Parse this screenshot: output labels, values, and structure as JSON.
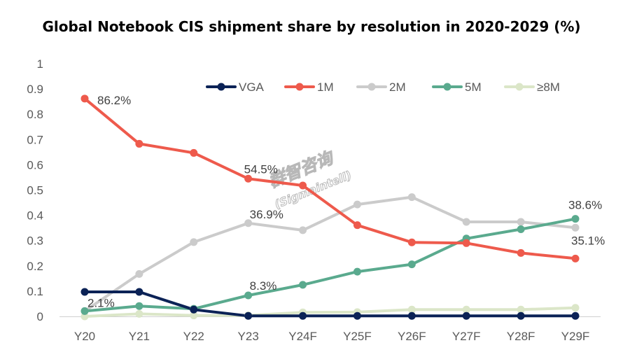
{
  "chart_data": {
    "type": "line",
    "title": "Global Notebook CIS shipment share by resolution in 2020-2029 (%)",
    "categories": [
      "Y20",
      "Y21",
      "Y22",
      "Y23",
      "Y24F",
      "Y25F",
      "Y26F",
      "Y27F",
      "Y28F",
      "Y29F"
    ],
    "ylim": [
      0,
      1
    ],
    "yticks": [
      "0",
      "0.1",
      "0.2",
      "0.3",
      "0.4",
      "0.5",
      "0.6",
      "0.7",
      "0.8",
      "0.9",
      "1"
    ],
    "grid": false,
    "legend_position": "top",
    "series": [
      {
        "name": "VGA",
        "color": "#0b2256",
        "values": [
          0.097,
          0.097,
          0.027,
          0.002,
          0.002,
          0.002,
          0.002,
          0.002,
          0.002,
          0.002
        ]
      },
      {
        "name": "1M",
        "color": "#ee5a4c",
        "values": [
          0.862,
          0.683,
          0.647,
          0.545,
          0.518,
          0.361,
          0.293,
          0.29,
          0.251,
          0.229
        ]
      },
      {
        "name": "2M",
        "color": "#cbcbcb",
        "values": [
          0.021,
          0.168,
          0.294,
          0.369,
          0.341,
          0.443,
          0.472,
          0.374,
          0.374,
          0.351
        ]
      },
      {
        "name": "5M",
        "color": "#5aaa8e",
        "values": [
          0.021,
          0.041,
          0.03,
          0.083,
          0.125,
          0.177,
          0.206,
          0.308,
          0.345,
          0.386
        ]
      },
      {
        "name": "≥8M",
        "color": "#dbe6c8",
        "values": [
          0.0,
          0.01,
          0.004,
          0.004,
          0.016,
          0.017,
          0.027,
          0.027,
          0.027,
          0.034
        ]
      }
    ],
    "annotations": [
      {
        "text": "86.2%",
        "series": "1M",
        "category": "Y20"
      },
      {
        "text": "54.5%",
        "series": "1M",
        "category": "Y23"
      },
      {
        "text": "36.9%",
        "series": "2M",
        "category": "Y23"
      },
      {
        "text": "8.3%",
        "series": "5M",
        "category": "Y23"
      },
      {
        "text": "2.1%",
        "series": "5M",
        "category": "Y20"
      },
      {
        "text": "38.6%",
        "series": "5M",
        "category": "Y29F"
      },
      {
        "text": "35.1%",
        "series": "2M",
        "category": "Y29F"
      }
    ]
  }
}
